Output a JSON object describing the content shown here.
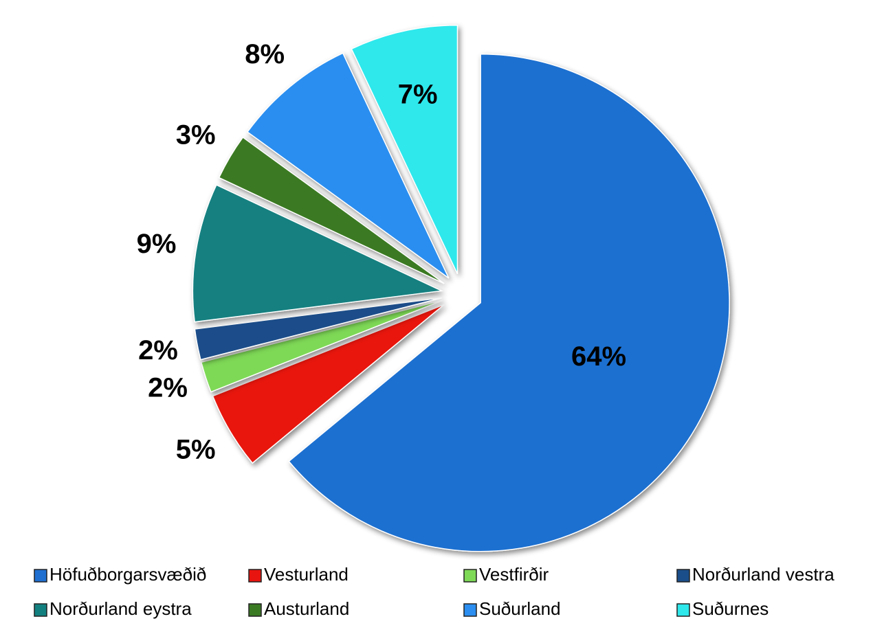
{
  "chart_data": {
    "type": "pie",
    "categories": [
      "Höfuðborgarsvæðið",
      "Vesturland",
      "Vestfirðir",
      "Norðurland vestra",
      "Norðurland eystra",
      "Austurland",
      "Suðurland",
      "Suðurnes"
    ],
    "values": [
      64,
      5,
      2,
      2,
      9,
      3,
      8,
      7
    ],
    "value_labels": [
      "64%",
      "5%",
      "2%",
      "2%",
      "9%",
      "3%",
      "8%",
      "7%"
    ],
    "colors": [
      "#1f6fd0",
      "#e8140f",
      "#7ed957",
      "#1a4e8a",
      "#138080",
      "#3a7a23",
      "#2b8ef0",
      "#2ee8ec"
    ],
    "legend": "bottom"
  }
}
